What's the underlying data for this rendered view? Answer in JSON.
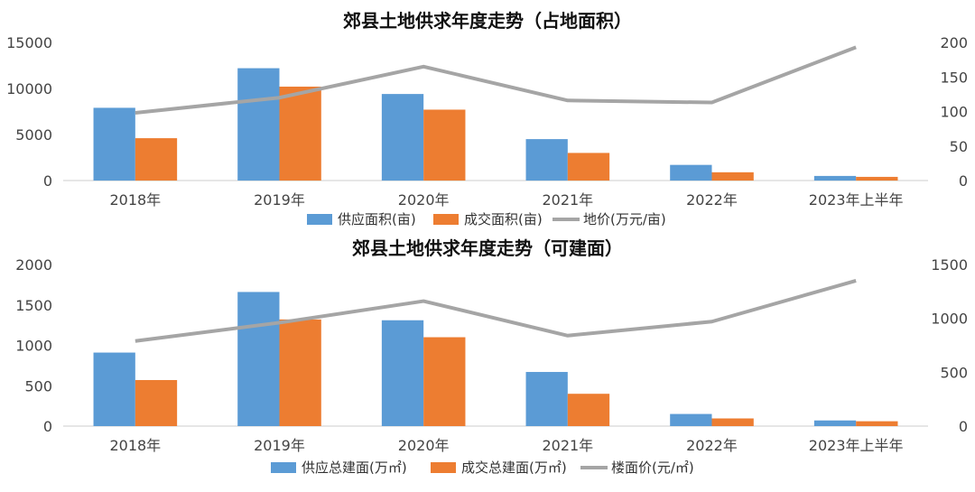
{
  "chart_data": [
    {
      "type": "bar",
      "title": "郊县土地供求年度走势（占地面积）",
      "categories": [
        "2018年",
        "2019年",
        "2020年",
        "2021年",
        "2022年",
        "2023年上半年"
      ],
      "ylim_left": [
        0,
        15000
      ],
      "ylim_right": [
        0,
        200
      ],
      "left_ticks": [
        "0",
        "5000",
        "10000",
        "15000"
      ],
      "right_ticks": [
        "0",
        "50",
        "100",
        "150",
        "200"
      ],
      "series": [
        {
          "name": "供应面积(亩)",
          "kind": "bar",
          "axis": "left",
          "color": "#5b9bd5",
          "values": [
            7900,
            12200,
            9400,
            4500,
            1700,
            500
          ]
        },
        {
          "name": "成交面积(亩)",
          "kind": "bar",
          "axis": "left",
          "color": "#ed7d31",
          "values": [
            4600,
            10200,
            7700,
            3000,
            900,
            400
          ]
        },
        {
          "name": "地价(万元/亩)",
          "kind": "line",
          "axis": "right",
          "color": "#a5a5a5",
          "values": [
            98,
            120,
            165,
            116,
            113,
            193
          ]
        }
      ]
    },
    {
      "type": "bar",
      "title": "郊县土地供求年度走势（可建面）",
      "categories": [
        "2018年",
        "2019年",
        "2020年",
        "2021年",
        "2022年",
        "2023年上半年"
      ],
      "ylim_left": [
        0,
        2000
      ],
      "ylim_right": [
        0,
        1500
      ],
      "left_ticks": [
        "0",
        "500",
        "1000",
        "1500",
        "2000"
      ],
      "right_ticks": [
        "0",
        "500",
        "1000",
        "1500"
      ],
      "series": [
        {
          "name": "供应总建面(万㎡)",
          "kind": "bar",
          "axis": "left",
          "color": "#5b9bd5",
          "values": [
            910,
            1660,
            1310,
            670,
            150,
            70
          ]
        },
        {
          "name": "成交总建面(万㎡)",
          "kind": "bar",
          "axis": "left",
          "color": "#ed7d31",
          "values": [
            570,
            1320,
            1100,
            400,
            95,
            60
          ]
        },
        {
          "name": "楼面价(元/㎡)",
          "kind": "line",
          "axis": "right",
          "color": "#a5a5a5",
          "values": [
            790,
            960,
            1160,
            840,
            970,
            1350
          ]
        }
      ]
    }
  ]
}
